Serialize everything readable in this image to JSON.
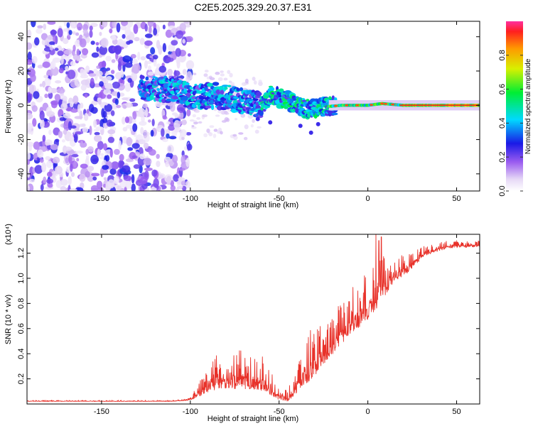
{
  "title": "C2E5.2025.329.20.37.E31",
  "chart_data": [
    {
      "type": "heatmap",
      "name": "spectrogram",
      "xlabel": "Height of straight line (km)",
      "ylabel": "Frequency (Hz)",
      "xlim": [
        -192,
        63
      ],
      "ylim": [
        -50,
        49
      ],
      "xticks": [
        -150,
        -100,
        -50,
        0,
        50
      ],
      "yticks": [
        -40,
        -20,
        0,
        20,
        40
      ],
      "noise_region_x": [
        -192,
        -100
      ],
      "signal_trace": [
        {
          "x": -125,
          "f": 10
        },
        {
          "x": -110,
          "f": 9
        },
        {
          "x": -100,
          "f": 5
        },
        {
          "x": -90,
          "f": 6
        },
        {
          "x": -80,
          "f": 5
        },
        {
          "x": -70,
          "f": 2
        },
        {
          "x": -58,
          "f": 0
        },
        {
          "x": -55,
          "f": 6
        },
        {
          "x": -45,
          "f": 3
        },
        {
          "x": -35,
          "f": -2
        },
        {
          "x": -25,
          "f": -1
        },
        {
          "x": -15,
          "f": 0
        },
        {
          "x": 0,
          "f": 0
        },
        {
          "x": 8,
          "f": 1
        },
        {
          "x": 20,
          "f": 0
        },
        {
          "x": 63,
          "f": 0
        }
      ],
      "colorbar": {
        "label": "Normalized spectral amplitude",
        "range": [
          0,
          1
        ],
        "ticks": [
          0.0,
          0.2,
          0.4,
          0.6,
          0.8
        ],
        "tick_labels": [
          "0.0",
          "0.2",
          "0.4",
          "0.6",
          "0.8"
        ]
      }
    },
    {
      "type": "line",
      "name": "snr",
      "xlabel": "Height of straight line (km)",
      "ylabel": "SNR (10 * v/v)",
      "exponent_label": "(x10⁴)",
      "xlim": [
        -192,
        63
      ],
      "ylim": [
        0,
        1.35
      ],
      "xticks": [
        -150,
        -100,
        -50,
        0,
        50
      ],
      "yticks": [
        0.2,
        0.4,
        0.6,
        0.8,
        1.0,
        1.2
      ],
      "ytick_labels": [
        "0.2",
        "0.4",
        "0.6",
        "0.8",
        "1.0",
        "1.2"
      ],
      "color": "#e8322a",
      "envelope": [
        {
          "x": -192,
          "base": 0.02,
          "amp": 0.01
        },
        {
          "x": -110,
          "base": 0.02,
          "amp": 0.01
        },
        {
          "x": -100,
          "base": 0.03,
          "amp": 0.02
        },
        {
          "x": -95,
          "base": 0.06,
          "amp": 0.12
        },
        {
          "x": -85,
          "base": 0.12,
          "amp": 0.28
        },
        {
          "x": -75,
          "base": 0.12,
          "amp": 0.3
        },
        {
          "x": -65,
          "base": 0.12,
          "amp": 0.34
        },
        {
          "x": -57,
          "base": 0.1,
          "amp": 0.3
        },
        {
          "x": -52,
          "base": 0.04,
          "amp": 0.12
        },
        {
          "x": -45,
          "base": 0.02,
          "amp": 0.08
        },
        {
          "x": -38,
          "base": 0.12,
          "amp": 0.35
        },
        {
          "x": -30,
          "base": 0.22,
          "amp": 0.42
        },
        {
          "x": -22,
          "base": 0.36,
          "amp": 0.32
        },
        {
          "x": -12,
          "base": 0.52,
          "amp": 0.38
        },
        {
          "x": -2,
          "base": 0.64,
          "amp": 0.36
        },
        {
          "x": 6,
          "base": 0.78,
          "amp": 0.42
        },
        {
          "x": 14,
          "base": 0.96,
          "amp": 0.2
        },
        {
          "x": 22,
          "base": 1.04,
          "amp": 0.16
        },
        {
          "x": 32,
          "base": 1.18,
          "amp": 0.08
        },
        {
          "x": 45,
          "base": 1.24,
          "amp": 0.06
        },
        {
          "x": 63,
          "base": 1.25,
          "amp": 0.05
        }
      ],
      "spikes": [
        {
          "x": 4.5,
          "y": 1.35
        },
        {
          "x": 6.2,
          "y": 1.3
        },
        {
          "x": 7.6,
          "y": 1.33
        },
        {
          "x": -2.0,
          "y": 1.02
        }
      ]
    }
  ]
}
